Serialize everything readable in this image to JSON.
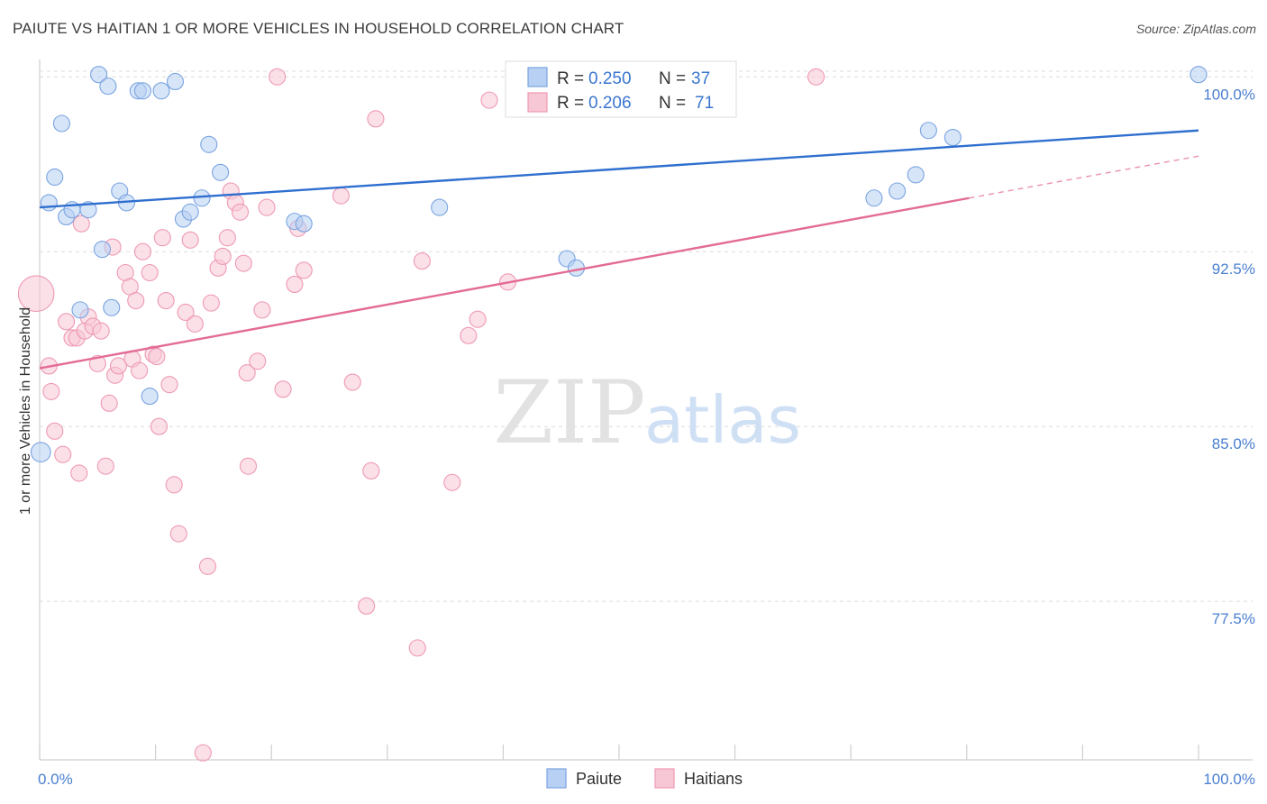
{
  "title": "PAIUTE VS HAITIAN 1 OR MORE VEHICLES IN HOUSEHOLD CORRELATION CHART",
  "source": "Source: ZipAtlas.com",
  "watermark": {
    "zip": "ZIP",
    "atlas": "atlas"
  },
  "colors": {
    "paiute_fill": "#b7d0f3",
    "paiute_stroke": "#7aa4e0",
    "paiute_line": "#2f6fcf",
    "haitian_fill": "#f8c7d5",
    "haitian_stroke": "#ee99b3",
    "haitian_line": "#e36b95",
    "tick_color": "#4a7fd0",
    "grid": "#dcdcdc"
  },
  "legend": {
    "rows": [
      {
        "r_label": "R = ",
        "r_value": "0.250",
        "n_label": "N = ",
        "n_value": "37"
      },
      {
        "r_label": "R = ",
        "r_value": "0.206",
        "n_label": "N = ",
        "n_value": "71"
      }
    ]
  },
  "chart_data": {
    "type": "scatter",
    "title": "PAIUTE VS HAITIAN 1 OR MORE VEHICLES IN HOUSEHOLD CORRELATION CHART",
    "xlabel": "",
    "ylabel": "1 or more Vehicles in Household",
    "xlim": [
      0,
      100
    ],
    "ylim": [
      70.7,
      100.9
    ],
    "x_tick_labels": [
      {
        "value": 0,
        "label": "0.0%"
      },
      {
        "value": 100,
        "label": "100.0%"
      }
    ],
    "y_ticks": [
      {
        "value": 100.0,
        "label": "100.0%"
      },
      {
        "value": 92.5,
        "label": "92.5%"
      },
      {
        "value": 85.0,
        "label": "85.0%"
      },
      {
        "value": 77.5,
        "label": "77.5%"
      }
    ],
    "grid": true,
    "legend_position": "top-center",
    "series": [
      {
        "name": "Paiute",
        "color": "#b7d0f3",
        "trend": {
          "x": [
            0,
            100
          ],
          "y": [
            94.4,
            97.7
          ]
        },
        "points": [
          {
            "x": 0.1,
            "y": 83.9,
            "s": 1.2
          },
          {
            "x": 0.8,
            "y": 94.6
          },
          {
            "x": 1.3,
            "y": 95.7
          },
          {
            "x": 1.9,
            "y": 98.0
          },
          {
            "x": 2.3,
            "y": 94.0
          },
          {
            "x": 2.8,
            "y": 94.3
          },
          {
            "x": 3.5,
            "y": 90.0
          },
          {
            "x": 4.2,
            "y": 94.3
          },
          {
            "x": 5.1,
            "y": 100.1
          },
          {
            "x": 5.4,
            "y": 92.6
          },
          {
            "x": 5.9,
            "y": 99.6
          },
          {
            "x": 6.2,
            "y": 90.1
          },
          {
            "x": 6.9,
            "y": 95.1
          },
          {
            "x": 7.5,
            "y": 94.6
          },
          {
            "x": 8.5,
            "y": 99.4
          },
          {
            "x": 8.9,
            "y": 99.4
          },
          {
            "x": 9.5,
            "y": 86.3
          },
          {
            "x": 10.5,
            "y": 99.4
          },
          {
            "x": 11.7,
            "y": 99.8
          },
          {
            "x": 12.4,
            "y": 93.9
          },
          {
            "x": 13.0,
            "y": 94.2
          },
          {
            "x": 14.0,
            "y": 94.8
          },
          {
            "x": 14.6,
            "y": 97.1
          },
          {
            "x": 15.6,
            "y": 95.9
          },
          {
            "x": 22.0,
            "y": 93.8
          },
          {
            "x": 22.8,
            "y": 93.7
          },
          {
            "x": 34.5,
            "y": 94.4
          },
          {
            "x": 45.5,
            "y": 92.2
          },
          {
            "x": 46.3,
            "y": 91.8
          },
          {
            "x": 72.0,
            "y": 94.8
          },
          {
            "x": 74.0,
            "y": 95.1
          },
          {
            "x": 75.6,
            "y": 95.8
          },
          {
            "x": 76.7,
            "y": 97.7
          },
          {
            "x": 78.8,
            "y": 97.4
          },
          {
            "x": 100.0,
            "y": 100.1
          }
        ]
      },
      {
        "name": "Haitians",
        "color": "#f8c7d5",
        "trend": {
          "x": [
            0,
            80.2
          ],
          "y": [
            87.5,
            94.8
          ]
        },
        "trend_dashed": {
          "x": [
            80.2,
            100
          ],
          "y": [
            94.8,
            96.6
          ]
        },
        "points": [
          {
            "x": -0.3,
            "y": 90.7,
            "s": 2.2
          },
          {
            "x": 0.8,
            "y": 87.6
          },
          {
            "x": 1.0,
            "y": 86.5
          },
          {
            "x": 1.3,
            "y": 84.8
          },
          {
            "x": 2.0,
            "y": 83.8
          },
          {
            "x": 2.3,
            "y": 89.5
          },
          {
            "x": 2.8,
            "y": 88.8
          },
          {
            "x": 3.2,
            "y": 88.8
          },
          {
            "x": 3.4,
            "y": 83.0
          },
          {
            "x": 3.6,
            "y": 93.7
          },
          {
            "x": 3.9,
            "y": 89.1
          },
          {
            "x": 4.2,
            "y": 89.7
          },
          {
            "x": 4.6,
            "y": 89.3
          },
          {
            "x": 5.0,
            "y": 87.7
          },
          {
            "x": 5.3,
            "y": 89.1
          },
          {
            "x": 5.7,
            "y": 83.3
          },
          {
            "x": 6.0,
            "y": 86.0
          },
          {
            "x": 6.3,
            "y": 92.7
          },
          {
            "x": 6.5,
            "y": 87.2
          },
          {
            "x": 6.8,
            "y": 87.6
          },
          {
            "x": 7.4,
            "y": 91.6
          },
          {
            "x": 7.8,
            "y": 91.0
          },
          {
            "x": 8.0,
            "y": 87.9
          },
          {
            "x": 8.3,
            "y": 90.4
          },
          {
            "x": 8.6,
            "y": 87.4
          },
          {
            "x": 8.9,
            "y": 92.5
          },
          {
            "x": 9.5,
            "y": 91.6
          },
          {
            "x": 9.8,
            "y": 88.1
          },
          {
            "x": 10.1,
            "y": 88.0
          },
          {
            "x": 10.3,
            "y": 85.0
          },
          {
            "x": 10.6,
            "y": 93.1
          },
          {
            "x": 10.9,
            "y": 90.4
          },
          {
            "x": 11.2,
            "y": 86.8
          },
          {
            "x": 11.6,
            "y": 82.5
          },
          {
            "x": 12.0,
            "y": 80.4
          },
          {
            "x": 12.6,
            "y": 89.9
          },
          {
            "x": 13.0,
            "y": 93.0
          },
          {
            "x": 13.4,
            "y": 89.4
          },
          {
            "x": 14.1,
            "y": 71.0
          },
          {
            "x": 14.5,
            "y": 79.0
          },
          {
            "x": 14.8,
            "y": 90.3
          },
          {
            "x": 15.4,
            "y": 91.8
          },
          {
            "x": 15.8,
            "y": 92.3
          },
          {
            "x": 16.2,
            "y": 93.1
          },
          {
            "x": 16.5,
            "y": 95.1
          },
          {
            "x": 16.9,
            "y": 94.6
          },
          {
            "x": 17.3,
            "y": 94.2
          },
          {
            "x": 17.6,
            "y": 92.0
          },
          {
            "x": 17.9,
            "y": 87.3
          },
          {
            "x": 18.0,
            "y": 83.3
          },
          {
            "x": 18.8,
            "y": 87.8
          },
          {
            "x": 19.2,
            "y": 90.0
          },
          {
            "x": 19.6,
            "y": 94.4
          },
          {
            "x": 20.5,
            "y": 100.0
          },
          {
            "x": 21.0,
            "y": 86.6
          },
          {
            "x": 22.0,
            "y": 91.1
          },
          {
            "x": 22.3,
            "y": 93.5
          },
          {
            "x": 22.8,
            "y": 91.7
          },
          {
            "x": 26.0,
            "y": 94.9
          },
          {
            "x": 27.0,
            "y": 86.9
          },
          {
            "x": 28.2,
            "y": 77.3
          },
          {
            "x": 28.6,
            "y": 83.1
          },
          {
            "x": 29.0,
            "y": 98.2
          },
          {
            "x": 32.6,
            "y": 75.5
          },
          {
            "x": 33.0,
            "y": 92.1
          },
          {
            "x": 35.6,
            "y": 82.6
          },
          {
            "x": 37.0,
            "y": 88.9
          },
          {
            "x": 37.8,
            "y": 89.6
          },
          {
            "x": 38.8,
            "y": 99.0
          },
          {
            "x": 40.4,
            "y": 91.2
          },
          {
            "x": 67.0,
            "y": 100.0
          }
        ]
      }
    ]
  }
}
